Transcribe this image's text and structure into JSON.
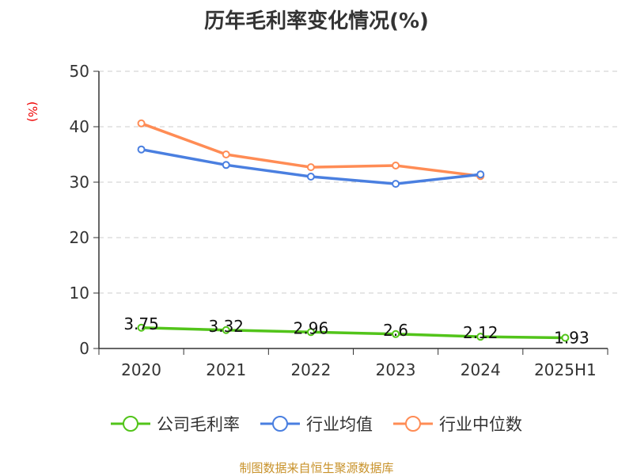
{
  "chart_data": {
    "type": "line",
    "title": "历年毛利率变化情况(%)",
    "ylabel": "(%)",
    "categories": [
      "2020",
      "2021",
      "2022",
      "2023",
      "2024",
      "2025H1"
    ],
    "ylim": [
      0,
      50
    ],
    "yticks": [
      "0",
      "10",
      "20",
      "30",
      "40",
      "50"
    ],
    "grid": true,
    "legend_position": "bottom",
    "series": [
      {
        "name": "公司毛利率",
        "color": "#52c41a",
        "values": [
          3.75,
          3.32,
          2.96,
          2.6,
          2.12,
          1.93
        ],
        "labels": [
          "3.75",
          "3.32",
          "2.96",
          "2.6",
          "2.12",
          "1.93"
        ]
      },
      {
        "name": "行业均值",
        "color": "#4a7fe0",
        "values": [
          35.9,
          33.1,
          31.0,
          29.7,
          31.4,
          null
        ]
      },
      {
        "name": "行业中位数",
        "color": "#ff8c55",
        "values": [
          40.6,
          35.0,
          32.7,
          33.0,
          31.1,
          null
        ]
      }
    ]
  },
  "source": "制图数据来自恒生聚源数据库"
}
